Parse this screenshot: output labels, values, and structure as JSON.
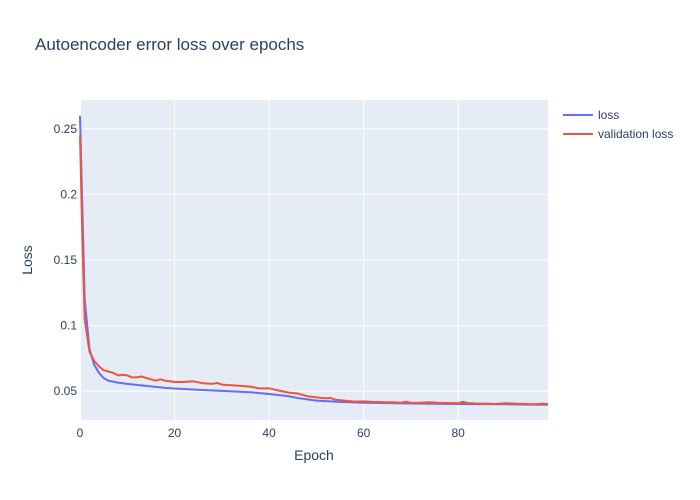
{
  "chart_data": {
    "type": "line",
    "title": "Autoencoder error loss over epochs",
    "xlabel": "Epoch",
    "ylabel": "Loss",
    "xlim": [
      0,
      99
    ],
    "ylim": [
      0.028,
      0.272
    ],
    "x_ticks": [
      0,
      20,
      40,
      60,
      80
    ],
    "x_tick_labels": [
      "0",
      "20",
      "40",
      "60",
      "80"
    ],
    "y_ticks": [
      0.05,
      0.1,
      0.15,
      0.2,
      0.25
    ],
    "y_tick_labels": [
      "0.05",
      "0.1",
      "0.15",
      "0.2",
      "0.25"
    ],
    "grid": true,
    "legend_position": "top-right",
    "series": [
      {
        "name": "loss",
        "color": "#636efa",
        "points": [
          [
            0,
            0.26
          ],
          [
            1,
            0.12
          ],
          [
            2,
            0.082
          ],
          [
            3,
            0.07
          ],
          [
            4,
            0.064
          ],
          [
            5,
            0.06
          ],
          [
            6,
            0.058
          ],
          [
            8,
            0.0565
          ],
          [
            10,
            0.0555
          ],
          [
            14,
            0.054
          ],
          [
            18,
            0.0525
          ],
          [
            20,
            0.052
          ],
          [
            25,
            0.051
          ],
          [
            30,
            0.0502
          ],
          [
            36,
            0.0492
          ],
          [
            40,
            0.0478
          ],
          [
            44,
            0.0462
          ],
          [
            46,
            0.0448
          ],
          [
            50,
            0.0428
          ],
          [
            55,
            0.0418
          ],
          [
            60,
            0.0412
          ],
          [
            70,
            0.0406
          ],
          [
            80,
            0.0402
          ],
          [
            90,
            0.04
          ],
          [
            99,
            0.0397
          ]
        ]
      },
      {
        "name": "validation loss",
        "color": "#ef553b",
        "points": [
          [
            0,
            0.245
          ],
          [
            0.5,
            0.165
          ],
          [
            1,
            0.105
          ],
          [
            2,
            0.08
          ],
          [
            3,
            0.073
          ],
          [
            4,
            0.069
          ],
          [
            5,
            0.066
          ],
          [
            6,
            0.065
          ],
          [
            7,
            0.064
          ],
          [
            8,
            0.062
          ],
          [
            9,
            0.0625
          ],
          [
            10,
            0.062
          ],
          [
            11,
            0.0605
          ],
          [
            12,
            0.0605
          ],
          [
            13,
            0.0612
          ],
          [
            14,
            0.06
          ],
          [
            15,
            0.059
          ],
          [
            16,
            0.058
          ],
          [
            17,
            0.059
          ],
          [
            18,
            0.058
          ],
          [
            19,
            0.0575
          ],
          [
            20,
            0.057
          ],
          [
            22,
            0.057
          ],
          [
            24,
            0.0575
          ],
          [
            26,
            0.056
          ],
          [
            28,
            0.0555
          ],
          [
            29,
            0.0562
          ],
          [
            30,
            0.055
          ],
          [
            32,
            0.0545
          ],
          [
            34,
            0.054
          ],
          [
            36,
            0.0535
          ],
          [
            38,
            0.052
          ],
          [
            40,
            0.0522
          ],
          [
            42,
            0.0505
          ],
          [
            44,
            0.049
          ],
          [
            46,
            0.0482
          ],
          [
            48,
            0.0462
          ],
          [
            50,
            0.0452
          ],
          [
            52,
            0.0445
          ],
          [
            53,
            0.0448
          ],
          [
            54,
            0.0435
          ],
          [
            56,
            0.0428
          ],
          [
            58,
            0.042
          ],
          [
            60,
            0.0422
          ],
          [
            62,
            0.0418
          ],
          [
            64,
            0.0416
          ],
          [
            66,
            0.0415
          ],
          [
            68,
            0.0412
          ],
          [
            69,
            0.042
          ],
          [
            70,
            0.041
          ],
          [
            72,
            0.0412
          ],
          [
            74,
            0.0415
          ],
          [
            76,
            0.041
          ],
          [
            78,
            0.041
          ],
          [
            80,
            0.0408
          ],
          [
            81,
            0.0418
          ],
          [
            82,
            0.041
          ],
          [
            84,
            0.0405
          ],
          [
            86,
            0.0405
          ],
          [
            88,
            0.0402
          ],
          [
            90,
            0.0408
          ],
          [
            92,
            0.0405
          ],
          [
            94,
            0.0402
          ],
          [
            96,
            0.04
          ],
          [
            98,
            0.0405
          ],
          [
            99,
            0.0402
          ]
        ]
      }
    ]
  }
}
